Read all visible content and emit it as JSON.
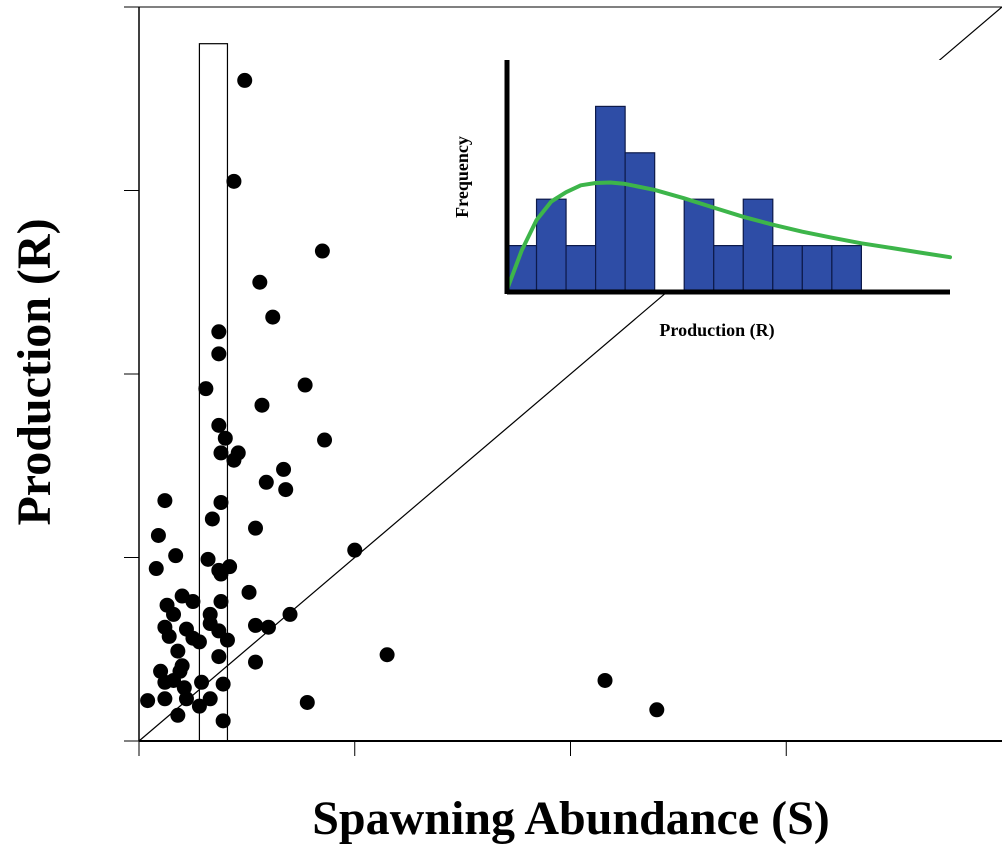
{
  "chart_data": {
    "type": "scatter",
    "title": "",
    "xlabel": "Spawning Abundance (S)",
    "ylabel": "Production (R)",
    "xlim": [
      0,
      4
    ],
    "ylim": [
      0,
      4
    ],
    "x_ticks": [
      0,
      1,
      2,
      3
    ],
    "y_ticks": [
      0,
      1,
      2,
      3
    ],
    "tick_labels_shown": false,
    "grid": false,
    "replacement_line": {
      "x": [
        0,
        4
      ],
      "y": [
        0,
        4
      ]
    },
    "highlight_band": {
      "x": [
        0.28,
        0.41
      ],
      "y": [
        0,
        3.8
      ]
    },
    "points": [
      {
        "x": 0.49,
        "y": 3.6
      },
      {
        "x": 0.44,
        "y": 3.05
      },
      {
        "x": 0.85,
        "y": 2.67
      },
      {
        "x": 0.56,
        "y": 2.5
      },
      {
        "x": 0.62,
        "y": 2.31
      },
      {
        "x": 0.37,
        "y": 2.23
      },
      {
        "x": 0.37,
        "y": 2.11
      },
      {
        "x": 0.77,
        "y": 1.94
      },
      {
        "x": 0.31,
        "y": 1.92
      },
      {
        "x": 0.57,
        "y": 1.83
      },
      {
        "x": 0.37,
        "y": 1.72
      },
      {
        "x": 0.86,
        "y": 1.64
      },
      {
        "x": 0.4,
        "y": 1.65
      },
      {
        "x": 0.38,
        "y": 1.57
      },
      {
        "x": 0.46,
        "y": 1.57
      },
      {
        "x": 0.44,
        "y": 1.53
      },
      {
        "x": 0.67,
        "y": 1.48
      },
      {
        "x": 0.59,
        "y": 1.41
      },
      {
        "x": 0.68,
        "y": 1.37
      },
      {
        "x": 0.12,
        "y": 1.31
      },
      {
        "x": 0.38,
        "y": 1.3
      },
      {
        "x": 0.34,
        "y": 1.21
      },
      {
        "x": 0.54,
        "y": 1.16
      },
      {
        "x": 0.09,
        "y": 1.12
      },
      {
        "x": 1.0,
        "y": 1.04
      },
      {
        "x": 0.17,
        "y": 1.01
      },
      {
        "x": 0.32,
        "y": 0.99
      },
      {
        "x": 0.37,
        "y": 0.93
      },
      {
        "x": 0.08,
        "y": 0.94
      },
      {
        "x": 0.42,
        "y": 0.95
      },
      {
        "x": 0.38,
        "y": 0.91
      },
      {
        "x": 0.51,
        "y": 0.81
      },
      {
        "x": 0.2,
        "y": 0.79
      },
      {
        "x": 0.25,
        "y": 0.76
      },
      {
        "x": 0.13,
        "y": 0.74
      },
      {
        "x": 0.38,
        "y": 0.76
      },
      {
        "x": 0.7,
        "y": 0.69
      },
      {
        "x": 0.16,
        "y": 0.69
      },
      {
        "x": 0.33,
        "y": 0.69
      },
      {
        "x": 0.12,
        "y": 0.62
      },
      {
        "x": 0.54,
        "y": 0.63
      },
      {
        "x": 0.6,
        "y": 0.62
      },
      {
        "x": 0.33,
        "y": 0.64
      },
      {
        "x": 0.22,
        "y": 0.61
      },
      {
        "x": 0.37,
        "y": 0.6
      },
      {
        "x": 0.14,
        "y": 0.57
      },
      {
        "x": 0.25,
        "y": 0.56
      },
      {
        "x": 0.28,
        "y": 0.54
      },
      {
        "x": 0.41,
        "y": 0.55
      },
      {
        "x": 0.18,
        "y": 0.49
      },
      {
        "x": 0.37,
        "y": 0.46
      },
      {
        "x": 1.15,
        "y": 0.47
      },
      {
        "x": 0.54,
        "y": 0.43
      },
      {
        "x": 0.2,
        "y": 0.41
      },
      {
        "x": 0.1,
        "y": 0.38
      },
      {
        "x": 0.19,
        "y": 0.38
      },
      {
        "x": 0.16,
        "y": 0.33
      },
      {
        "x": 0.12,
        "y": 0.32
      },
      {
        "x": 0.29,
        "y": 0.32
      },
      {
        "x": 0.39,
        "y": 0.31
      },
      {
        "x": 2.16,
        "y": 0.33
      },
      {
        "x": 0.21,
        "y": 0.29
      },
      {
        "x": 0.04,
        "y": 0.22
      },
      {
        "x": 0.12,
        "y": 0.23
      },
      {
        "x": 0.22,
        "y": 0.23
      },
      {
        "x": 0.33,
        "y": 0.23
      },
      {
        "x": 0.28,
        "y": 0.19
      },
      {
        "x": 0.78,
        "y": 0.21
      },
      {
        "x": 0.18,
        "y": 0.14
      },
      {
        "x": 2.4,
        "y": 0.17
      },
      {
        "x": 0.39,
        "y": 0.11
      }
    ],
    "inset": {
      "type": "histogram",
      "xlabel": "Production (R)",
      "ylabel": "Frequency",
      "xlim": [
        0,
        15
      ],
      "ylim": [
        0,
        5
      ],
      "bins": [
        0,
        1,
        2,
        3,
        4,
        5,
        6,
        7,
        8,
        9,
        10,
        11,
        12
      ],
      "counts": [
        1,
        2,
        1,
        4,
        3,
        0,
        2,
        1,
        2,
        1,
        1,
        1
      ],
      "density_curve": {
        "x": [
          0,
          0.5,
          1,
          1.5,
          2,
          2.5,
          3,
          3.5,
          4,
          5,
          6,
          7,
          8,
          9,
          10,
          11,
          12,
          13,
          14,
          15
        ],
        "y": [
          0.05,
          0.9,
          1.55,
          1.95,
          2.15,
          2.3,
          2.35,
          2.36,
          2.33,
          2.2,
          2.02,
          1.82,
          1.62,
          1.45,
          1.3,
          1.17,
          1.05,
          0.95,
          0.85,
          0.75
        ]
      },
      "bar_color": "#2E4DA6",
      "bar_edge_color": "#0d1a4a",
      "curve_color": "#3DB54A"
    }
  }
}
